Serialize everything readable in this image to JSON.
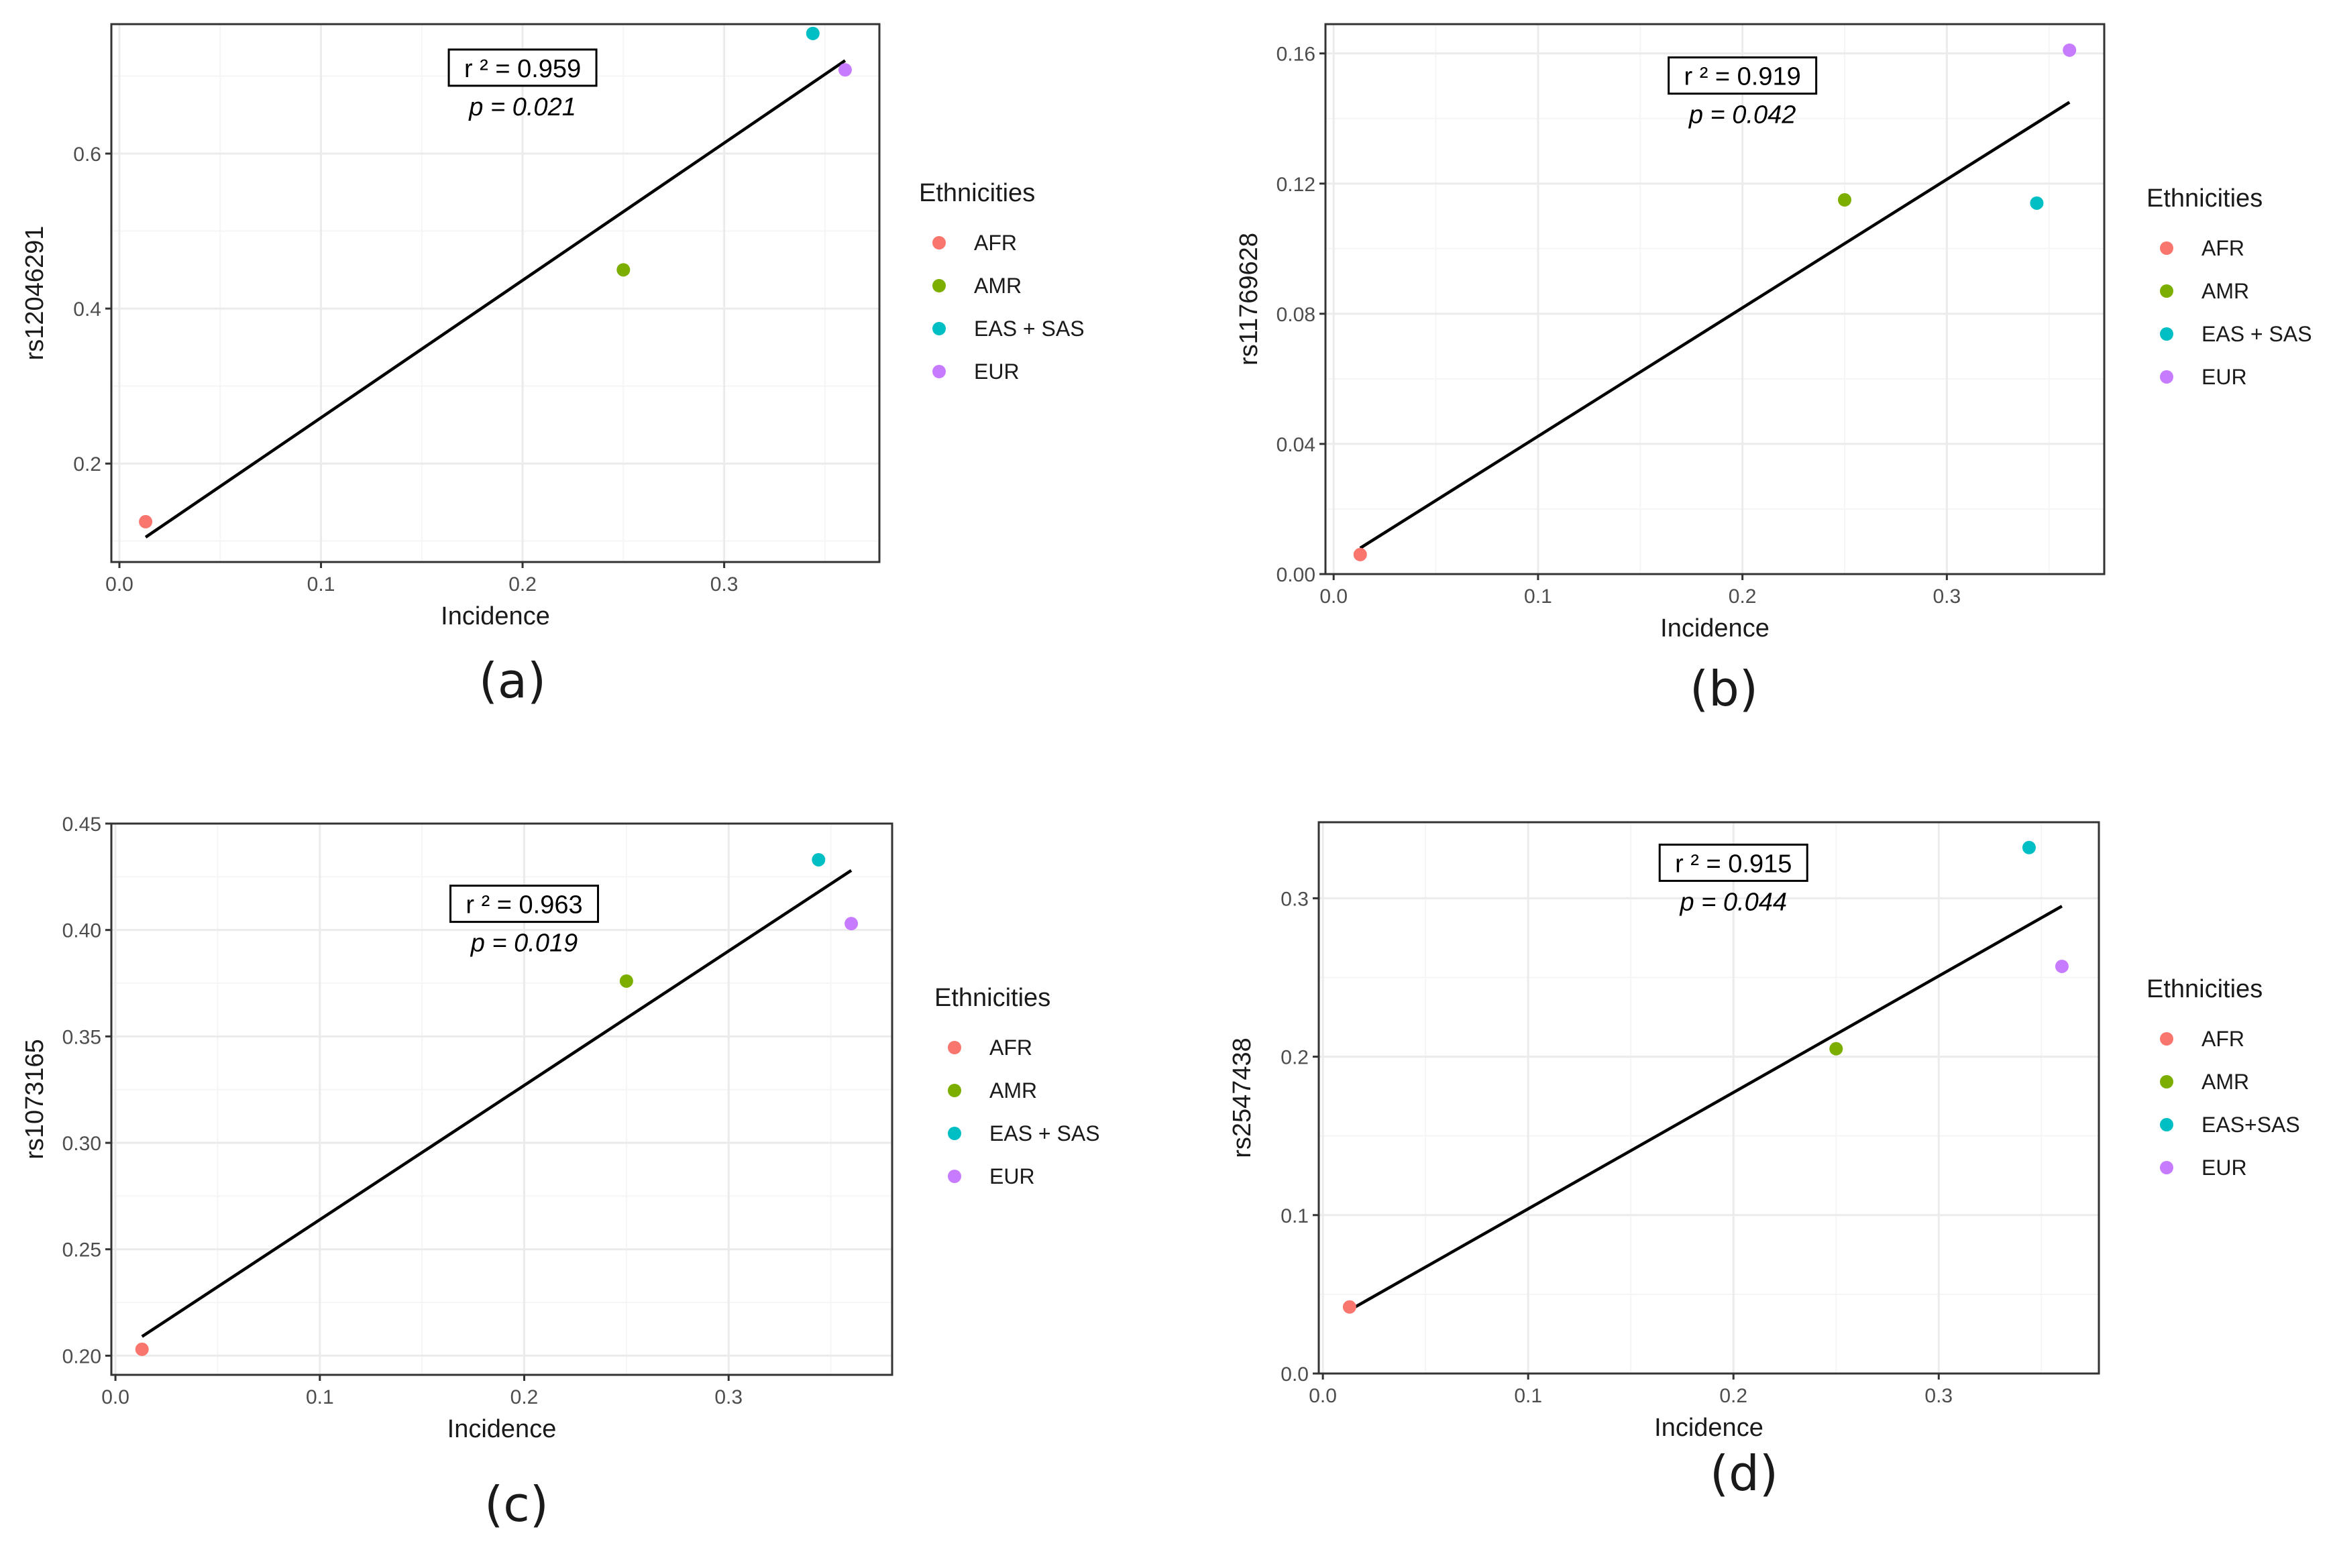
{
  "colors": {
    "AFR": "#F8766D",
    "AMR": "#7CAE00",
    "EAS": "#00BFC4",
    "EUR": "#C77CFF",
    "line": "#000000",
    "grid_major": "#ebebeb",
    "grid_minor": "#f5f5f5",
    "border": "#333333"
  },
  "chart_data": [
    {
      "type": "scatter",
      "panel_label": "(a)",
      "xlabel": "Incidence",
      "ylabel": "rs12046291",
      "xlim": [
        -0.004,
        0.377
      ],
      "ylim": [
        0.073,
        0.767
      ],
      "xticks": [
        0.0,
        0.1,
        0.2,
        0.3
      ],
      "xtick_labels": [
        "0.0",
        "0.1",
        "0.2",
        "0.3"
      ],
      "yticks": [
        0.2,
        0.4,
        0.6
      ],
      "ytick_labels": [
        "0.2",
        "0.4",
        "0.6"
      ],
      "points": [
        {
          "group": "AFR",
          "x": 0.013,
          "y": 0.125
        },
        {
          "group": "AMR",
          "x": 0.25,
          "y": 0.45
        },
        {
          "group": "EAS",
          "x": 0.344,
          "y": 0.755
        },
        {
          "group": "EUR",
          "x": 0.36,
          "y": 0.708
        }
      ],
      "fit_line": {
        "x": [
          0.013,
          0.36
        ],
        "y": [
          0.105,
          0.72
        ]
      },
      "stats": {
        "r2": "r ² = 0.959",
        "p": "p = 0.021"
      },
      "stats_pos": [
        0.2,
        0.71
      ],
      "legend": {
        "title": "Ethnicities",
        "entries": [
          {
            "group": "AFR",
            "label": "AFR"
          },
          {
            "group": "AMR",
            "label": "AMR"
          },
          {
            "group": "EAS",
            "label": "EAS + SAS"
          },
          {
            "group": "EUR",
            "label": "EUR"
          }
        ]
      }
    },
    {
      "type": "scatter",
      "panel_label": "(b)",
      "xlabel": "Incidence",
      "ylabel": "rs11769628",
      "xlim": [
        -0.004,
        0.377
      ],
      "ylim": [
        0.0,
        0.169
      ],
      "xticks": [
        0.0,
        0.1,
        0.2,
        0.3
      ],
      "xtick_labels": [
        "0.0",
        "0.1",
        "0.2",
        "0.3"
      ],
      "yticks": [
        0.0,
        0.04,
        0.08,
        0.12,
        0.16
      ],
      "ytick_labels": [
        "0.00",
        "0.04",
        "0.08",
        "0.12",
        "0.16"
      ],
      "points": [
        {
          "group": "AFR",
          "x": 0.013,
          "y": 0.006
        },
        {
          "group": "AMR",
          "x": 0.25,
          "y": 0.115
        },
        {
          "group": "EAS",
          "x": 0.344,
          "y": 0.114
        },
        {
          "group": "EUR",
          "x": 0.36,
          "y": 0.161
        }
      ],
      "fit_line": {
        "x": [
          0.013,
          0.36
        ],
        "y": [
          0.008,
          0.145
        ]
      },
      "stats": {
        "r2": "r ² = 0.919",
        "p": "p = 0.042"
      },
      "stats_pos": [
        0.2,
        0.153
      ],
      "legend": {
        "title": "Ethnicities",
        "entries": [
          {
            "group": "AFR",
            "label": "AFR"
          },
          {
            "group": "AMR",
            "label": "AMR"
          },
          {
            "group": "EAS",
            "label": "EAS + SAS"
          },
          {
            "group": "EUR",
            "label": "EUR"
          }
        ]
      }
    },
    {
      "type": "scatter",
      "panel_label": "(c)",
      "xlabel": "Incidence",
      "ylabel": "rs1073165",
      "xlim": [
        -0.002,
        0.38
      ],
      "ylim": [
        0.191,
        0.45
      ],
      "xticks": [
        0.0,
        0.1,
        0.2,
        0.3
      ],
      "xtick_labels": [
        "0.0",
        "0.1",
        "0.2",
        "0.3"
      ],
      "yticks": [
        0.2,
        0.25,
        0.3,
        0.35,
        0.4,
        0.45
      ],
      "ytick_labels": [
        "0.20",
        "0.25",
        "0.30",
        "0.35",
        "0.40",
        "0.45"
      ],
      "points": [
        {
          "group": "AFR",
          "x": 0.013,
          "y": 0.203
        },
        {
          "group": "AMR",
          "x": 0.25,
          "y": 0.376
        },
        {
          "group": "EAS",
          "x": 0.344,
          "y": 0.433
        },
        {
          "group": "EUR",
          "x": 0.36,
          "y": 0.403
        }
      ],
      "fit_line": {
        "x": [
          0.013,
          0.36
        ],
        "y": [
          0.209,
          0.428
        ]
      },
      "stats": {
        "r2": "r ² = 0.963",
        "p": "p = 0.019"
      },
      "stats_pos": [
        0.2,
        0.412
      ],
      "legend": {
        "title": "Ethnicities",
        "entries": [
          {
            "group": "AFR",
            "label": "AFR"
          },
          {
            "group": "AMR",
            "label": "AMR"
          },
          {
            "group": "EAS",
            "label": "EAS + SAS"
          },
          {
            "group": "EUR",
            "label": "EUR"
          }
        ]
      }
    },
    {
      "type": "scatter",
      "panel_label": "(d)",
      "xlabel": "Incidence",
      "ylabel": "rs2547438",
      "xlim": [
        -0.002,
        0.378
      ],
      "ylim": [
        0.0,
        0.348
      ],
      "xticks": [
        0.0,
        0.1,
        0.2,
        0.3
      ],
      "xtick_labels": [
        "0.0",
        "0.1",
        "0.2",
        "0.3"
      ],
      "yticks": [
        0.0,
        0.1,
        0.2,
        0.3
      ],
      "ytick_labels": [
        "0.0",
        "0.1",
        "0.2",
        "0.3"
      ],
      "points": [
        {
          "group": "AFR",
          "x": 0.013,
          "y": 0.042
        },
        {
          "group": "AMR",
          "x": 0.25,
          "y": 0.205
        },
        {
          "group": "EAS",
          "x": 0.344,
          "y": 0.332
        },
        {
          "group": "EUR",
          "x": 0.36,
          "y": 0.257
        }
      ],
      "fit_line": {
        "x": [
          0.013,
          0.36
        ],
        "y": [
          0.04,
          0.295
        ]
      },
      "stats": {
        "r2": "r ² = 0.915",
        "p": "p = 0.044"
      },
      "stats_pos": [
        0.2,
        0.322
      ],
      "legend": {
        "title": "Ethnicities",
        "entries": [
          {
            "group": "AFR",
            "label": "AFR"
          },
          {
            "group": "AMR",
            "label": "AMR"
          },
          {
            "group": "EAS",
            "label": "EAS+SAS"
          },
          {
            "group": "EUR",
            "label": "EUR"
          }
        ]
      }
    }
  ]
}
